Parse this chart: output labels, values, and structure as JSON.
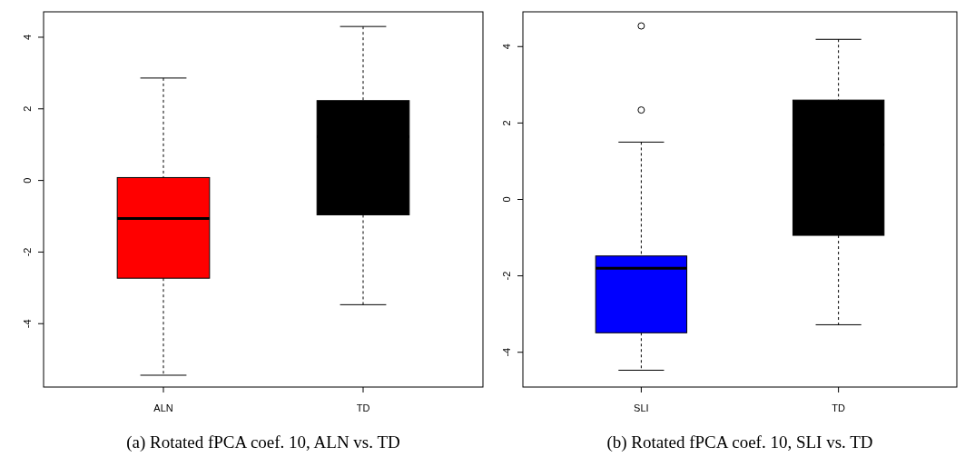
{
  "chart_data": [
    {
      "type": "box",
      "title": "(a) Rotated fPCA coef. 10, ALN vs. TD",
      "categories": [
        "ALN",
        "TD"
      ],
      "colors": [
        "#ff0000",
        "#000000"
      ],
      "ylim": [
        -5.77,
        4.71
      ],
      "yticks": [
        -4,
        -2,
        0,
        2,
        4
      ],
      "boxes": [
        {
          "low": -5.44,
          "q1": -2.73,
          "median": -1.06,
          "q3": 0.08,
          "high": 2.86
        },
        {
          "low": -3.47,
          "q1": -0.96,
          "median": 1.22,
          "q3": 2.23,
          "high": 4.3
        }
      ]
    },
    {
      "type": "box",
      "title": "(b) Rotated fPCA coef. 10, SLI vs. TD",
      "categories": [
        "SLI",
        "TD"
      ],
      "colors": [
        "#0000ff",
        "#000000"
      ],
      "ylim": [
        -4.91,
        4.91
      ],
      "yticks": [
        -4,
        -2,
        0,
        2,
        4
      ],
      "boxes": [
        {
          "low": -4.47,
          "q1": -3.49,
          "median": -1.8,
          "q3": -1.48,
          "high": 1.5,
          "outliers": [
            4.54,
            2.34
          ]
        },
        {
          "low": -3.28,
          "q1": -0.94,
          "median": 1.43,
          "q3": 2.6,
          "high": 4.19
        }
      ]
    }
  ]
}
